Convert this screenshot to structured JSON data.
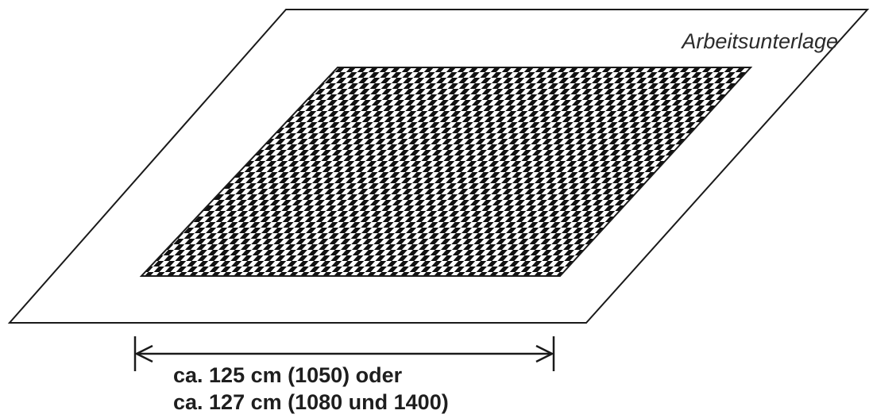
{
  "diagram": {
    "mat_label": "Arbeitsunterlage",
    "dimension_lines": [
      "ca. 125 cm (1050) oder",
      "ca. 127 cm (1080 und 1400)"
    ],
    "colors": {
      "outline": "#1a1a1a",
      "checker_dark": "#111111",
      "checker_light": "#ffffff",
      "background": "#ffffff"
    }
  }
}
